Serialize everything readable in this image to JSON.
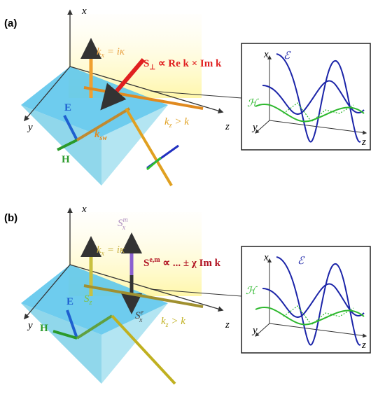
{
  "panels": [
    {
      "label": "(a)",
      "axes": {
        "x": "x",
        "y": "y",
        "z": "z"
      },
      "kx": {
        "k": "k",
        "sub": "x",
        "rest": " = iκ"
      },
      "poynting": {
        "main": "S",
        "sub": "⊥",
        "rest": " ∝ Re k × Im k"
      },
      "E": "E",
      "H": "H",
      "ksw": {
        "k": "k",
        "sub": "sw"
      },
      "kz": {
        "k": "k",
        "sub": "z",
        "rest": " > k"
      },
      "inset": {
        "x": "x",
        "y": "y",
        "z": "z",
        "E": "ℰ",
        "H": "ℋ"
      }
    },
    {
      "label": "(b)",
      "axes": {
        "x": "x",
        "y": "y",
        "z": "z"
      },
      "kx": {
        "k": "k",
        "sub": "x",
        "rest": " = iκ"
      },
      "sxm": {
        "main": "S",
        "sub": "x",
        "sup": "m"
      },
      "poynting": {
        "main": "S",
        "sup": "e,m",
        "rest": " ∝ ... ± χ Im k"
      },
      "E": "E",
      "H": "H",
      "sz": {
        "main": "S",
        "sub": "z"
      },
      "sxe": {
        "main": "S",
        "sub": "x",
        "sup": "e"
      },
      "kz": {
        "k": "k",
        "sub": "z",
        "rest": " > k"
      },
      "inset": {
        "x": "x",
        "y": "y",
        "z": "z",
        "E": "ℰ",
        "H": "ℋ"
      }
    }
  ]
}
